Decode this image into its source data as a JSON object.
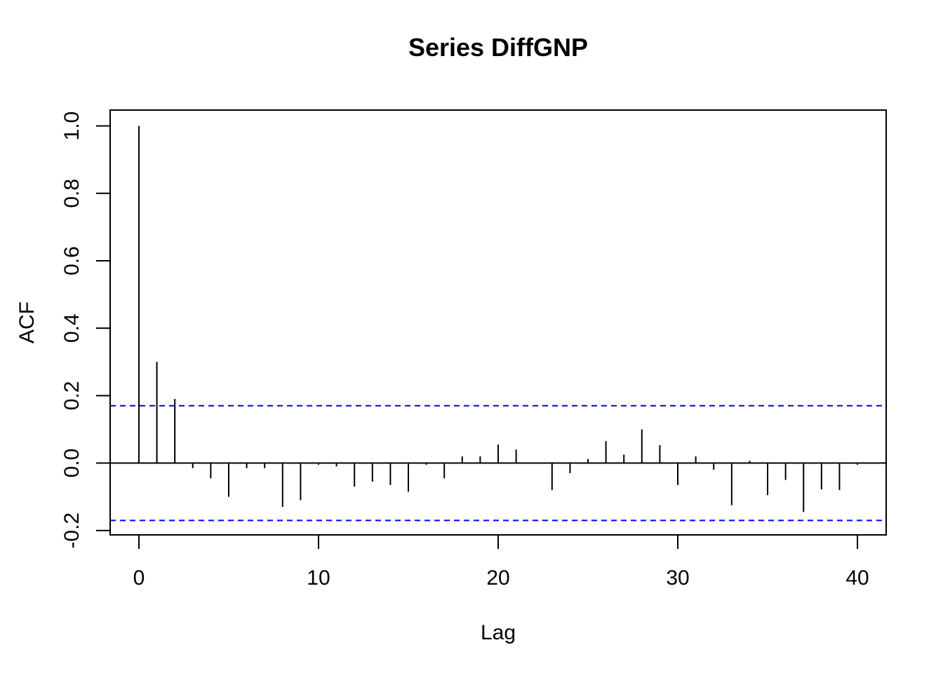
{
  "chart_data": {
    "type": "bar",
    "title": "Series  DiffGNP",
    "xlabel": "Lag",
    "ylabel": "ACF",
    "xlim": [
      -1.6,
      41.6
    ],
    "ylim": [
      -0.213,
      1.047
    ],
    "x_ticks": [
      0,
      10,
      20,
      30,
      40
    ],
    "y_ticks": [
      -0.2,
      0.0,
      0.2,
      0.4,
      0.6,
      0.8,
      1.0
    ],
    "x_tick_labels": [
      "0",
      "10",
      "20",
      "30",
      "40"
    ],
    "y_tick_labels": [
      "-0.2",
      "0.0",
      "0.2",
      "0.4",
      "0.6",
      "0.8",
      "1.0"
    ],
    "grid": false,
    "zero_line": 0,
    "confidence_bounds": [
      0.17,
      -0.17
    ],
    "bar_color": "#000000",
    "ci_color": "#0000ff",
    "lags": [
      0,
      1,
      2,
      3,
      4,
      5,
      6,
      7,
      8,
      9,
      10,
      11,
      12,
      13,
      14,
      15,
      16,
      17,
      18,
      19,
      20,
      21,
      22,
      23,
      24,
      25,
      26,
      27,
      28,
      29,
      30,
      31,
      32,
      33,
      34,
      35,
      36,
      37,
      38,
      39,
      40
    ],
    "values": [
      1.0,
      0.3,
      0.19,
      -0.015,
      -0.045,
      -0.1,
      -0.015,
      -0.015,
      -0.13,
      -0.11,
      -0.005,
      -0.01,
      -0.07,
      -0.055,
      -0.065,
      -0.085,
      -0.005,
      -0.045,
      0.02,
      0.02,
      0.055,
      0.04,
      0.0,
      -0.08,
      -0.03,
      0.012,
      0.065,
      0.025,
      0.1,
      0.053,
      -0.065,
      0.02,
      -0.02,
      -0.125,
      0.007,
      -0.095,
      -0.05,
      -0.145,
      -0.078,
      -0.08,
      -0.005
    ]
  }
}
